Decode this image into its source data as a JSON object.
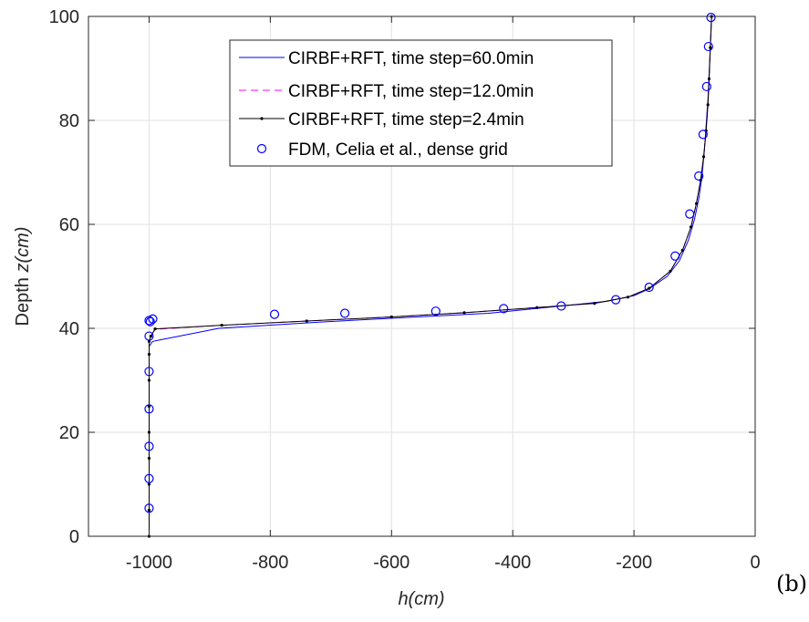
{
  "chart_data": {
    "type": "line",
    "xlabel": "h(cm)",
    "ylabel_prefix": "Depth  ",
    "ylabel_unit": "z(cm)",
    "xlim": [
      -1100,
      0
    ],
    "ylim": [
      0,
      100
    ],
    "xticks": [
      -1000,
      -800,
      -600,
      -400,
      -200,
      0
    ],
    "yticks": [
      0,
      20,
      40,
      60,
      80,
      100
    ],
    "grid": true,
    "legend_position": "top-right",
    "panel_label": "(b)",
    "series": [
      {
        "name": "CIRBF+RFT, time step=60.0min",
        "color": "#0000ff",
        "style": "solid",
        "x": [
          -1000,
          -1000,
          -1000,
          -1000,
          -1000,
          -1000,
          -1000,
          -1000,
          -1000,
          -995,
          -990,
          -885,
          -720,
          -590,
          -440,
          -320,
          -245,
          -200,
          -175,
          -145,
          -125,
          -110,
          -100,
          -93,
          -88,
          -84,
          -81,
          -78,
          -76,
          -74,
          -72
        ],
        "y": [
          0,
          5,
          10,
          15,
          20,
          25,
          30,
          34,
          36.5,
          37.4,
          37.6,
          40,
          41.2,
          42,
          42.9,
          44.3,
          45.2,
          46.3,
          47.6,
          50,
          53,
          57,
          61,
          65,
          69,
          74,
          79,
          84,
          89,
          94,
          100
        ]
      },
      {
        "name": "CIRBF+RFT, time step=12.0min",
        "color": "#ff00ff",
        "style": "dashed",
        "x": [
          -1000,
          -1000,
          -1000,
          -1000,
          -1000,
          -1000,
          -1000,
          -1000,
          -1000,
          -997,
          -990,
          -880,
          -740,
          -600,
          -480,
          -360,
          -265,
          -210,
          -175,
          -140,
          -120,
          -106,
          -97,
          -90,
          -85,
          -81,
          -78,
          -76,
          -74,
          -72
        ],
        "y": [
          0,
          5,
          10,
          15,
          20,
          25,
          30,
          35,
          37.5,
          38.5,
          39.8,
          40.6,
          41.4,
          42.2,
          43,
          44,
          44.8,
          46,
          47.7,
          51,
          55,
          59.5,
          64,
          68.5,
          73,
          78,
          83,
          88,
          94,
          100
        ]
      },
      {
        "name": "CIRBF+RFT, time step=2.4min",
        "color": "#000000",
        "style": "solid-dots",
        "x": [
          -1000,
          -1000,
          -1000,
          -1000,
          -1000,
          -1000,
          -1000,
          -1000,
          -1000,
          -997,
          -990,
          -880,
          -740,
          -600,
          -480,
          -360,
          -265,
          -210,
          -175,
          -140,
          -120,
          -106,
          -97,
          -90,
          -85,
          -81,
          -78,
          -76,
          -74,
          -72
        ],
        "y": [
          0,
          5,
          10,
          15,
          20,
          25,
          30,
          35,
          37.5,
          38.5,
          39.9,
          40.6,
          41.4,
          42.2,
          43,
          44,
          44.8,
          46,
          47.7,
          51,
          55,
          59.5,
          64,
          68.5,
          73,
          78,
          83,
          88,
          94,
          100
        ]
      },
      {
        "name": "FDM, Celia et al., dense grid",
        "color": "#0000ff",
        "style": "circle-markers",
        "x": [
          -1000,
          -1000,
          -1000,
          -1000,
          -1000,
          -1000,
          -998,
          -1000,
          -994,
          -793,
          -677,
          -527,
          -415,
          -320,
          -230,
          -175,
          -132,
          -108,
          -93,
          -86,
          -80,
          -77,
          -73
        ],
        "y": [
          5.4,
          11.1,
          17.3,
          24.5,
          31.7,
          38.5,
          41.3,
          41.5,
          41.8,
          42.7,
          42.9,
          43.3,
          43.8,
          44.3,
          45.5,
          47.9,
          53.9,
          62,
          69.3,
          77.3,
          86.5,
          94.2,
          99.8
        ]
      }
    ]
  }
}
